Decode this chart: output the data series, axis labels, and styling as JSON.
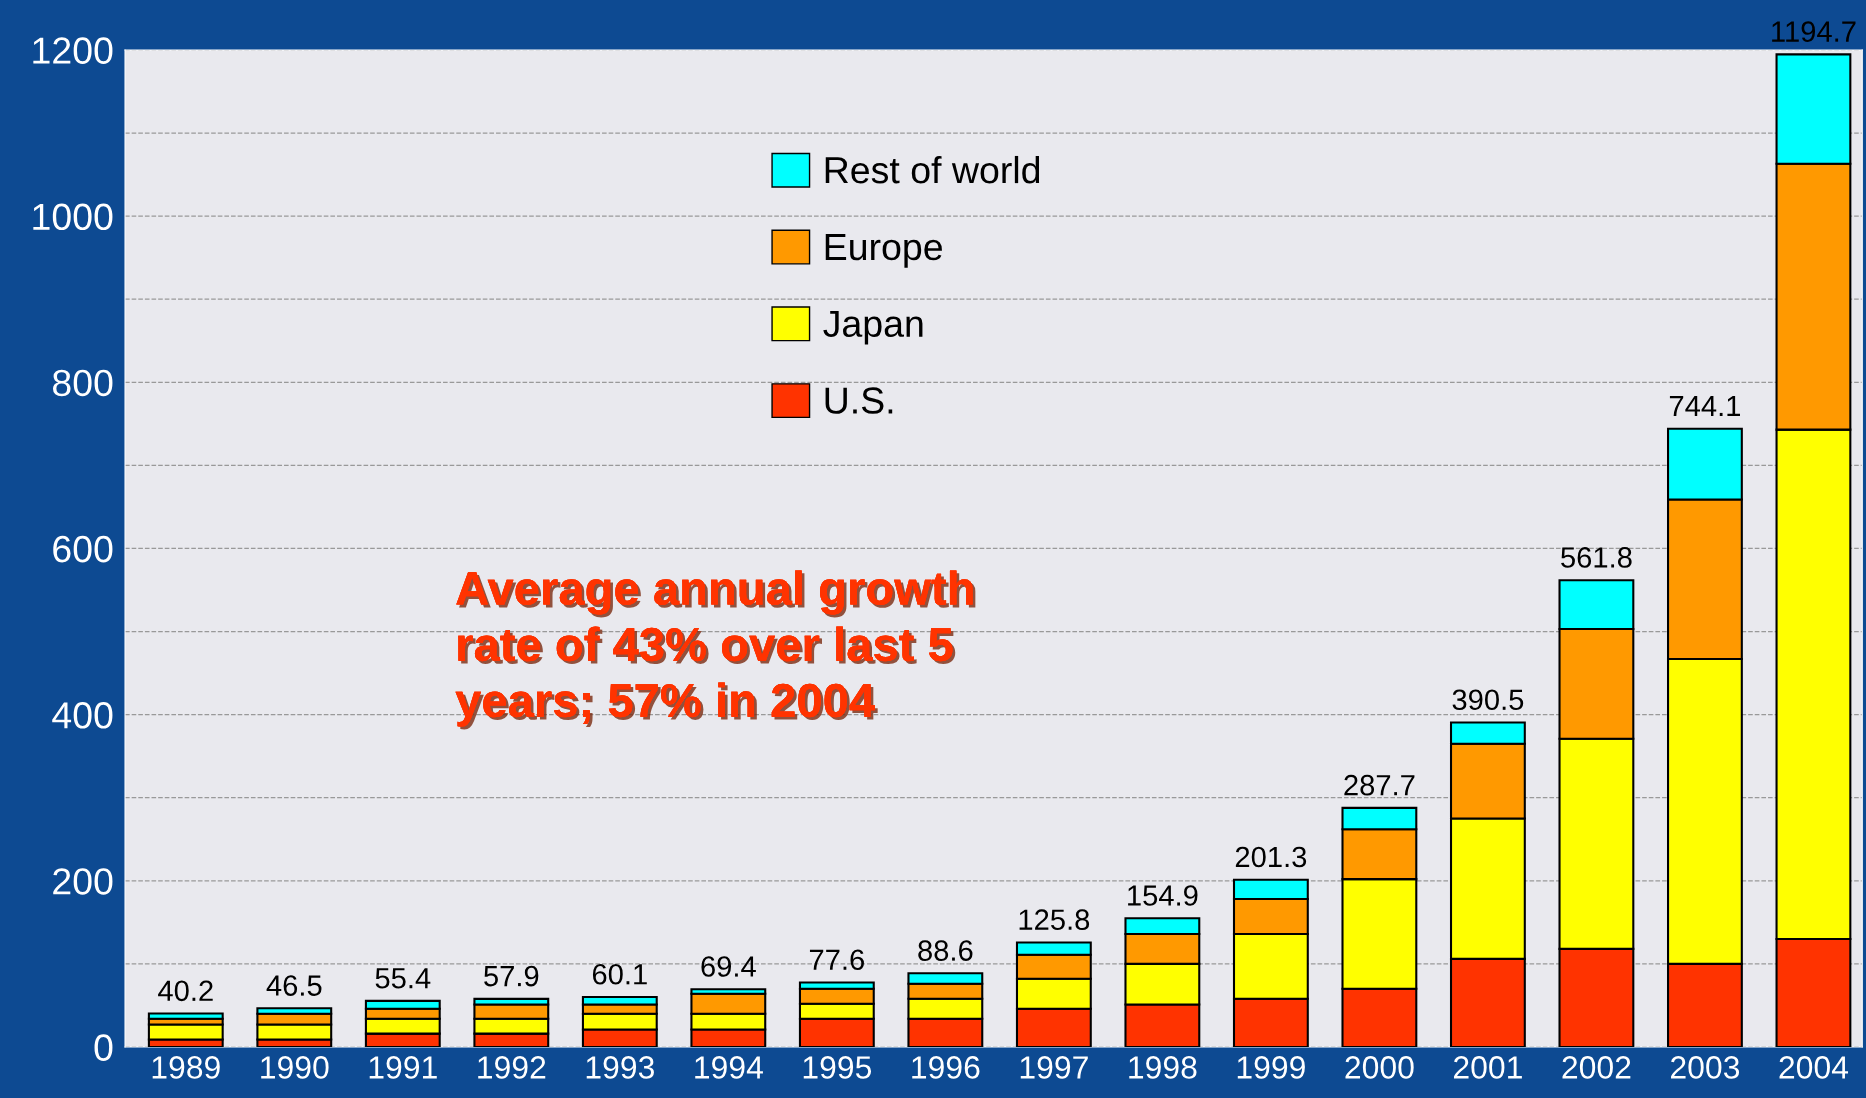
{
  "chart_data": {
    "type": "bar",
    "stacked": true,
    "categories": [
      "1989",
      "1990",
      "1991",
      "1992",
      "1993",
      "1994",
      "1995",
      "1996",
      "1997",
      "1998",
      "1999",
      "2000",
      "2001",
      "2002",
      "2003",
      "2004"
    ],
    "series": [
      {
        "name": "U.S.",
        "color": "#ff3300",
        "values": [
          9,
          9,
          16,
          16,
          21,
          21,
          34,
          34,
          46,
          51,
          58,
          70,
          106,
          118,
          100,
          130
        ]
      },
      {
        "name": "Japan",
        "color": "#ffff00",
        "values": [
          18,
          18,
          18,
          18,
          19,
          19,
          18,
          24,
          36,
          49,
          78,
          132,
          169,
          253,
          367,
          613
        ]
      },
      {
        "name": "Europe",
        "color": "#ff9900",
        "values": [
          7,
          13,
          12,
          17,
          11,
          24,
          18,
          18,
          29,
          36,
          42,
          60,
          90,
          132,
          192,
          320
        ]
      },
      {
        "name": "Rest of world",
        "color": "#00ffff",
        "values": [
          6.2,
          6.5,
          9.4,
          6.9,
          9.1,
          5.4,
          7.6,
          12.6,
          14.8,
          18.9,
          23.3,
          25.7,
          25.5,
          58.8,
          85.1,
          131.7
        ]
      }
    ],
    "totals": [
      "40.2",
      "46.5",
      "55.4",
      "57.9",
      "60.1",
      "69.4",
      "77.6",
      "88.6",
      "125.8",
      "154.9",
      "201.3",
      "287.7",
      "390.5",
      "561.8",
      "744.1",
      "1194.7"
    ],
    "ylim": [
      0,
      1200
    ],
    "yticks": [
      0,
      {
        "value": 100,
        "label": null
      },
      200,
      {
        "value": 300,
        "label": null
      },
      400,
      {
        "value": 500,
        "label": null
      },
      600,
      {
        "value": 700,
        "label": null
      },
      800,
      {
        "value": 900,
        "label": null
      },
      1000,
      {
        "value": 1100,
        "label": null
      },
      1200
    ],
    "grid": "y",
    "legend": "top",
    "annotations": [
      "Average annual growth\nrate of 43% over last 5\nyears; 57% in 2004"
    ]
  }
}
